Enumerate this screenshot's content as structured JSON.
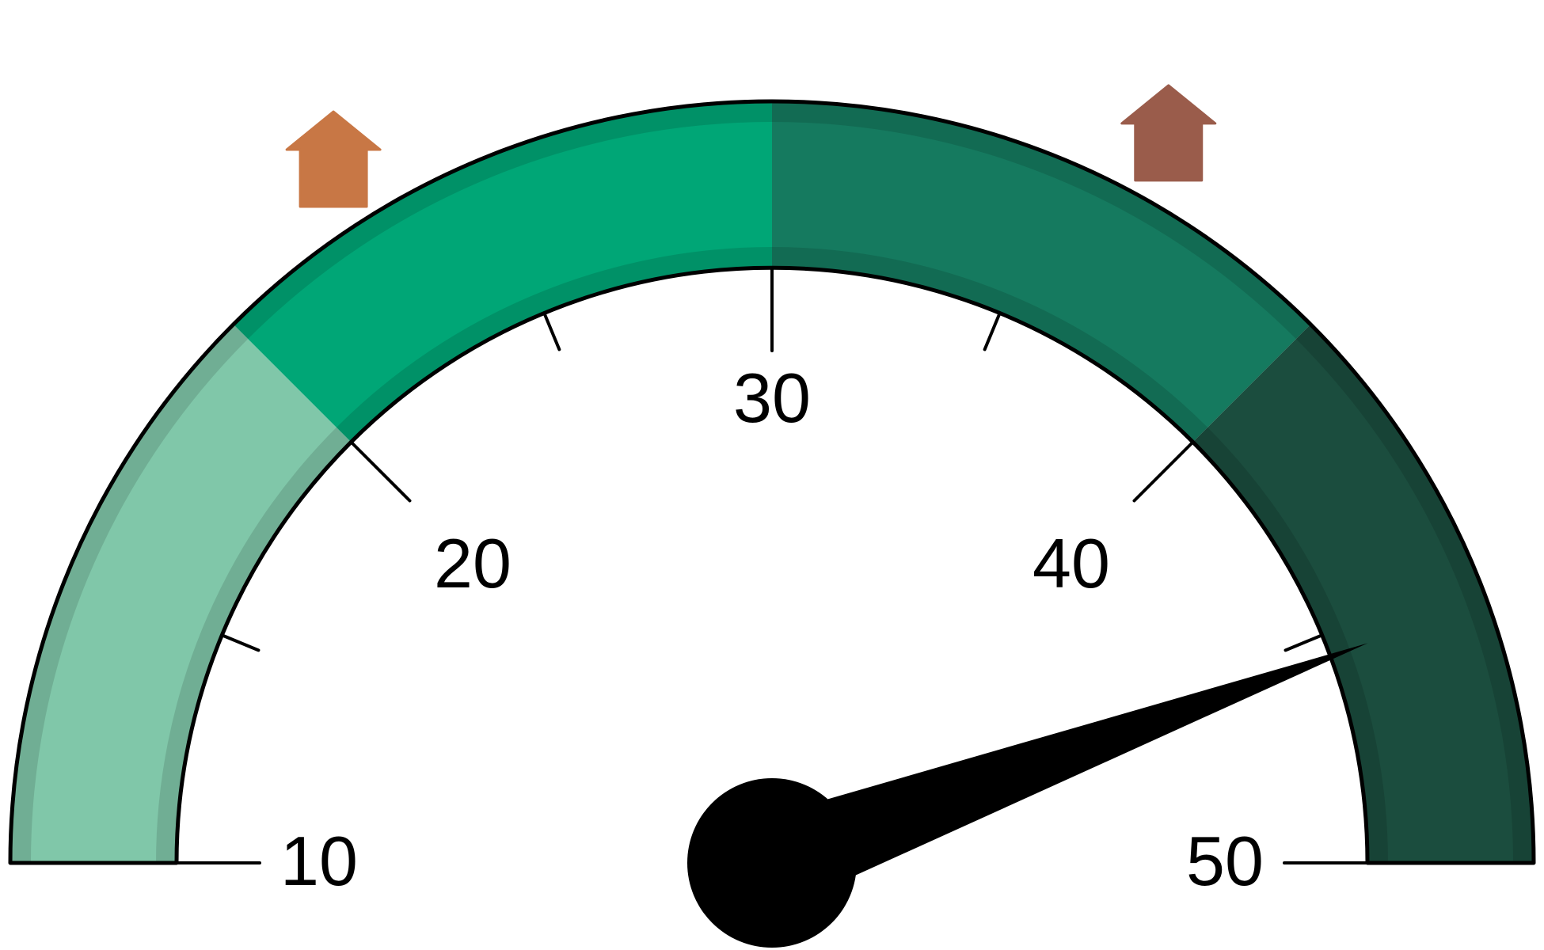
{
  "chart_data": {
    "type": "gauge",
    "title": "",
    "min": 10,
    "max": 50,
    "value": 45.5,
    "major_ticks": [
      10,
      20,
      30,
      40,
      50
    ],
    "minor_ticks": [
      15,
      25,
      35,
      45
    ],
    "tick_labels": [
      "10",
      "20",
      "30",
      "40",
      "50"
    ],
    "bands": [
      {
        "from": 10,
        "to": 20,
        "color": "#80c7a9"
      },
      {
        "from": 20,
        "to": 30,
        "color": "#00a676"
      },
      {
        "from": 30,
        "to": 40,
        "color": "#157a5f"
      },
      {
        "from": 40,
        "to": 50,
        "color": "#1b4d3e"
      }
    ],
    "markers": [
      {
        "value": 22.5,
        "color": "#c87745",
        "icon": "arrow-up-icon"
      },
      {
        "value": 36.7,
        "color": "#9a5c4b",
        "icon": "arrow-up-icon"
      }
    ],
    "needle_color": "#000000"
  }
}
